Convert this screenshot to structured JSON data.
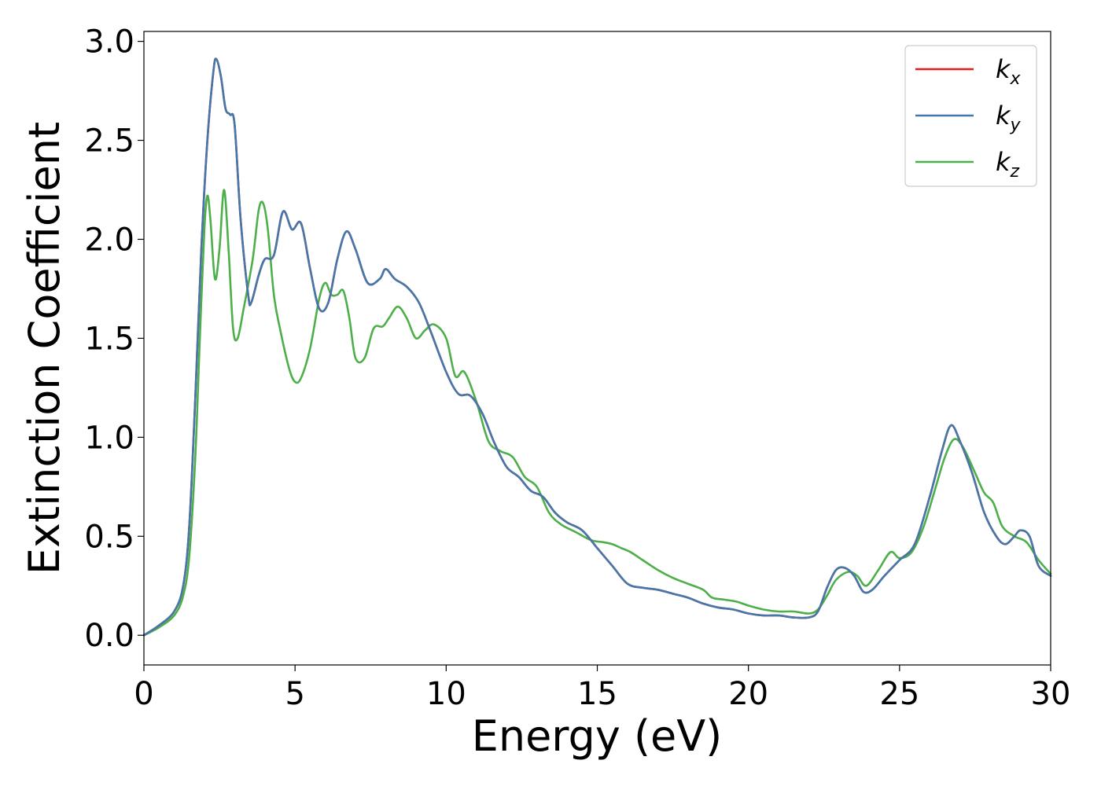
{
  "chart_data": {
    "type": "line",
    "title": "",
    "xlabel": "Energy (eV)",
    "ylabel": "Extinction Coefficient",
    "xlim": [
      0,
      30
    ],
    "ylim": [
      -0.15,
      3.05
    ],
    "xticks": [
      0,
      5,
      10,
      15,
      20,
      25,
      30
    ],
    "xtick_labels": [
      "0",
      "5",
      "10",
      "15",
      "20",
      "25",
      "30"
    ],
    "yticks": [
      0.0,
      0.5,
      1.0,
      1.5,
      2.0,
      2.5,
      3.0
    ],
    "ytick_labels": [
      "0.0",
      "0.5",
      "1.0",
      "1.5",
      "2.0",
      "2.5",
      "3.0"
    ],
    "grid": false,
    "legend_position": "top-right",
    "series": [
      {
        "name": "k_x",
        "legend_base": "k",
        "legend_sub": "x",
        "color": "#e41a1c",
        "x": [
          0,
          0.5,
          1.0,
          1.3,
          1.5,
          1.7,
          1.9,
          2.1,
          2.3,
          2.4,
          2.55,
          2.7,
          2.85,
          3.0,
          3.2,
          3.45,
          3.55,
          3.8,
          4.0,
          4.3,
          4.6,
          4.9,
          5.2,
          5.5,
          5.8,
          6.1,
          6.4,
          6.7,
          7.0,
          7.4,
          7.8,
          8.0,
          8.3,
          8.7,
          9.1,
          9.5,
          10.0,
          10.4,
          10.8,
          11.2,
          11.6,
          12.0,
          12.4,
          12.8,
          13.2,
          13.6,
          14.0,
          14.5,
          15.0,
          15.5,
          16.0,
          16.5,
          17.0,
          17.5,
          18.0,
          18.5,
          19.0,
          19.5,
          20.0,
          20.5,
          21.0,
          21.5,
          22.0,
          22.3,
          22.6,
          22.9,
          23.2,
          23.5,
          23.8,
          24.1,
          24.5,
          25.0,
          25.5,
          26.0,
          26.4,
          26.7,
          27.0,
          27.4,
          27.8,
          28.2,
          28.5,
          28.8,
          29.0,
          29.3,
          29.6,
          30.0
        ],
        "y": [
          0.0,
          0.05,
          0.12,
          0.25,
          0.55,
          1.2,
          1.95,
          2.5,
          2.85,
          2.91,
          2.82,
          2.66,
          2.63,
          2.58,
          2.1,
          1.72,
          1.68,
          1.82,
          1.9,
          1.92,
          2.14,
          2.05,
          2.08,
          1.85,
          1.65,
          1.68,
          1.9,
          2.04,
          1.95,
          1.78,
          1.8,
          1.85,
          1.8,
          1.76,
          1.68,
          1.53,
          1.33,
          1.22,
          1.21,
          1.12,
          0.97,
          0.85,
          0.8,
          0.73,
          0.7,
          0.62,
          0.57,
          0.53,
          0.44,
          0.35,
          0.26,
          0.24,
          0.23,
          0.21,
          0.19,
          0.16,
          0.14,
          0.13,
          0.11,
          0.1,
          0.1,
          0.09,
          0.09,
          0.12,
          0.24,
          0.33,
          0.34,
          0.3,
          0.22,
          0.23,
          0.3,
          0.38,
          0.46,
          0.7,
          0.93,
          1.06,
          0.98,
          0.82,
          0.62,
          0.5,
          0.46,
          0.5,
          0.53,
          0.5,
          0.35,
          0.3
        ]
      },
      {
        "name": "k_y",
        "legend_base": "k",
        "legend_sub": "y",
        "color": "#4477aa",
        "x": [
          0,
          0.5,
          1.0,
          1.3,
          1.5,
          1.7,
          1.9,
          2.1,
          2.3,
          2.4,
          2.55,
          2.7,
          2.85,
          3.0,
          3.2,
          3.45,
          3.55,
          3.8,
          4.0,
          4.3,
          4.6,
          4.9,
          5.2,
          5.5,
          5.8,
          6.1,
          6.4,
          6.7,
          7.0,
          7.4,
          7.8,
          8.0,
          8.3,
          8.7,
          9.1,
          9.5,
          10.0,
          10.4,
          10.8,
          11.2,
          11.6,
          12.0,
          12.4,
          12.8,
          13.2,
          13.6,
          14.0,
          14.5,
          15.0,
          15.5,
          16.0,
          16.5,
          17.0,
          17.5,
          18.0,
          18.5,
          19.0,
          19.5,
          20.0,
          20.5,
          21.0,
          21.5,
          22.0,
          22.3,
          22.6,
          22.9,
          23.2,
          23.5,
          23.8,
          24.1,
          24.5,
          25.0,
          25.5,
          26.0,
          26.4,
          26.7,
          27.0,
          27.4,
          27.8,
          28.2,
          28.5,
          28.8,
          29.0,
          29.3,
          29.6,
          30.0
        ],
        "y": [
          0.0,
          0.05,
          0.12,
          0.25,
          0.55,
          1.2,
          1.95,
          2.5,
          2.85,
          2.91,
          2.82,
          2.66,
          2.63,
          2.58,
          2.1,
          1.72,
          1.68,
          1.82,
          1.9,
          1.92,
          2.14,
          2.05,
          2.08,
          1.85,
          1.65,
          1.68,
          1.9,
          2.04,
          1.95,
          1.78,
          1.8,
          1.85,
          1.8,
          1.76,
          1.68,
          1.53,
          1.33,
          1.22,
          1.21,
          1.12,
          0.97,
          0.85,
          0.8,
          0.73,
          0.7,
          0.62,
          0.57,
          0.53,
          0.44,
          0.35,
          0.26,
          0.24,
          0.23,
          0.21,
          0.19,
          0.16,
          0.14,
          0.13,
          0.11,
          0.1,
          0.1,
          0.09,
          0.09,
          0.12,
          0.24,
          0.33,
          0.34,
          0.3,
          0.22,
          0.23,
          0.3,
          0.38,
          0.46,
          0.7,
          0.93,
          1.06,
          0.98,
          0.82,
          0.62,
          0.5,
          0.46,
          0.5,
          0.53,
          0.5,
          0.35,
          0.3
        ]
      },
      {
        "name": "k_z",
        "legend_base": "k",
        "legend_sub": "z",
        "color": "#4daf4a",
        "x": [
          0,
          0.5,
          1.0,
          1.3,
          1.5,
          1.7,
          1.85,
          2.0,
          2.1,
          2.2,
          2.35,
          2.5,
          2.65,
          2.8,
          2.95,
          3.1,
          3.3,
          3.6,
          3.8,
          3.95,
          4.1,
          4.3,
          4.5,
          4.8,
          5.0,
          5.2,
          5.5,
          5.8,
          6.0,
          6.2,
          6.4,
          6.6,
          6.8,
          7.0,
          7.3,
          7.6,
          7.9,
          8.1,
          8.4,
          8.7,
          9.0,
          9.3,
          9.6,
          10.0,
          10.3,
          10.6,
          11.0,
          11.4,
          11.8,
          12.2,
          12.6,
          13.0,
          13.4,
          13.8,
          14.3,
          14.8,
          15.2,
          15.5,
          15.8,
          16.1,
          16.5,
          17.0,
          17.5,
          18.0,
          18.5,
          18.8,
          19.2,
          19.6,
          20.0,
          20.5,
          21.0,
          21.5,
          22.0,
          22.3,
          22.6,
          22.9,
          23.3,
          23.6,
          23.9,
          24.3,
          24.7,
          25.0,
          25.4,
          25.8,
          26.2,
          26.5,
          26.8,
          27.1,
          27.5,
          27.8,
          28.1,
          28.4,
          28.8,
          29.2,
          29.6,
          30.0
        ],
        "y": [
          0.0,
          0.04,
          0.1,
          0.2,
          0.4,
          0.9,
          1.5,
          2.05,
          2.22,
          2.1,
          1.8,
          1.95,
          2.25,
          1.95,
          1.55,
          1.5,
          1.65,
          1.9,
          2.15,
          2.18,
          2.05,
          1.72,
          1.55,
          1.35,
          1.28,
          1.3,
          1.45,
          1.7,
          1.78,
          1.72,
          1.72,
          1.74,
          1.6,
          1.4,
          1.4,
          1.55,
          1.56,
          1.6,
          1.66,
          1.6,
          1.5,
          1.54,
          1.57,
          1.5,
          1.31,
          1.33,
          1.18,
          0.98,
          0.93,
          0.9,
          0.8,
          0.75,
          0.62,
          0.56,
          0.52,
          0.48,
          0.47,
          0.46,
          0.44,
          0.42,
          0.38,
          0.33,
          0.29,
          0.26,
          0.23,
          0.19,
          0.18,
          0.17,
          0.15,
          0.13,
          0.12,
          0.12,
          0.11,
          0.13,
          0.2,
          0.28,
          0.32,
          0.3,
          0.25,
          0.33,
          0.42,
          0.39,
          0.42,
          0.55,
          0.75,
          0.9,
          0.99,
          0.95,
          0.82,
          0.72,
          0.67,
          0.55,
          0.5,
          0.47,
          0.38,
          0.31
        ]
      }
    ]
  }
}
